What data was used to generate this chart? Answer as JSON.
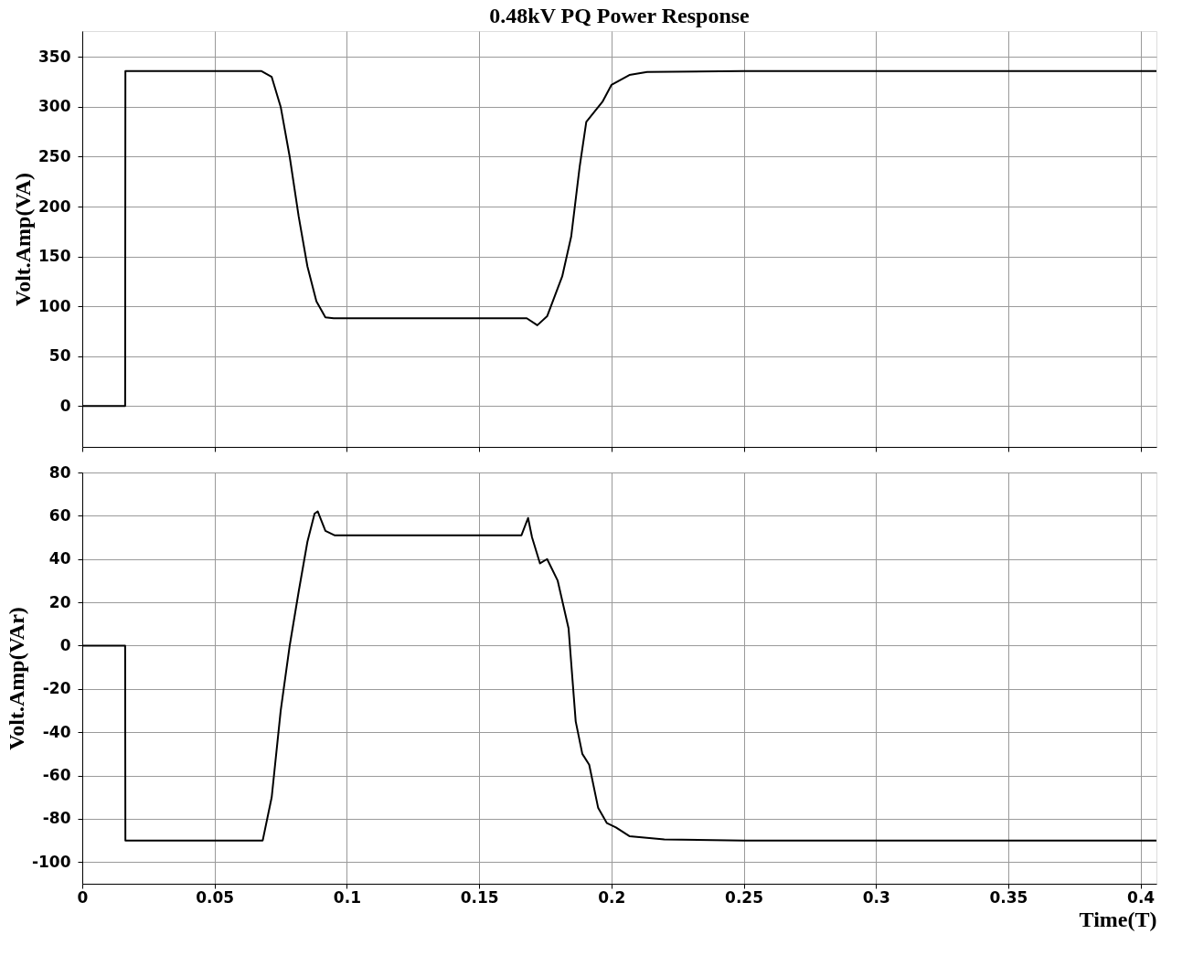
{
  "chart_data": [
    {
      "type": "line",
      "title": "0.48kV PQ Power Response",
      "ylabel": "Volt.Amp(VA)",
      "xlim": [
        0,
        0.406
      ],
      "ylim": [
        -41,
        376
      ],
      "xticks": [
        0,
        0.05,
        0.1,
        0.15,
        0.2,
        0.25,
        0.3,
        0.35,
        0.4
      ],
      "yticks": [
        0,
        50,
        100,
        150,
        200,
        250,
        300,
        350
      ],
      "grid": true,
      "tick_labels": "y",
      "line_style": "solid",
      "series": [
        {
          "color": "#000000",
          "x": [
            0,
            0.0162,
            0.0163,
            0.0676,
            0.0716,
            0.075,
            0.0784,
            0.0818,
            0.0851,
            0.0885,
            0.0919,
            0.095,
            0.168,
            0.172,
            0.1757,
            0.1814,
            0.1848,
            0.188,
            0.1905,
            0.1966,
            0.2,
            0.2068,
            0.2135,
            0.25,
            0.406
          ],
          "values": [
            0,
            0,
            336,
            336,
            330,
            300,
            250,
            190,
            140,
            105,
            89,
            88,
            88,
            81,
            90,
            130,
            170,
            240,
            285,
            305,
            322,
            332,
            335,
            336,
            336
          ]
        }
      ]
    },
    {
      "type": "line",
      "xlabel": "Time(T)",
      "ylabel": "Volt.Amp(VAr)",
      "xlim": [
        0,
        0.406
      ],
      "ylim": [
        -110,
        80
      ],
      "xticks": [
        0,
        0.05,
        0.1,
        0.15,
        0.2,
        0.25,
        0.3,
        0.35,
        0.4
      ],
      "yticks": [
        -100,
        -80,
        -60,
        -40,
        -20,
        0,
        20,
        40,
        60,
        80
      ],
      "grid": true,
      "line_style": "solid",
      "series": [
        {
          "color": "#000000",
          "x": [
            0,
            0.0162,
            0.0163,
            0.0682,
            0.0716,
            0.075,
            0.0784,
            0.0818,
            0.0851,
            0.0878,
            0.089,
            0.0919,
            0.0953,
            0.166,
            0.1685,
            0.17,
            0.173,
            0.1757,
            0.1797,
            0.1838,
            0.1865,
            0.189,
            0.1916,
            0.195,
            0.1983,
            0.2017,
            0.2068,
            0.22,
            0.25,
            0.406
          ],
          "values": [
            0,
            0,
            -90,
            -90,
            -70,
            -30,
            0,
            25,
            48,
            61,
            62,
            53,
            51,
            51,
            59,
            50,
            38,
            40,
            30,
            8,
            -35,
            -50,
            -55,
            -75,
            -82,
            -84,
            -88,
            -89.5,
            -90,
            -90
          ]
        }
      ]
    }
  ]
}
